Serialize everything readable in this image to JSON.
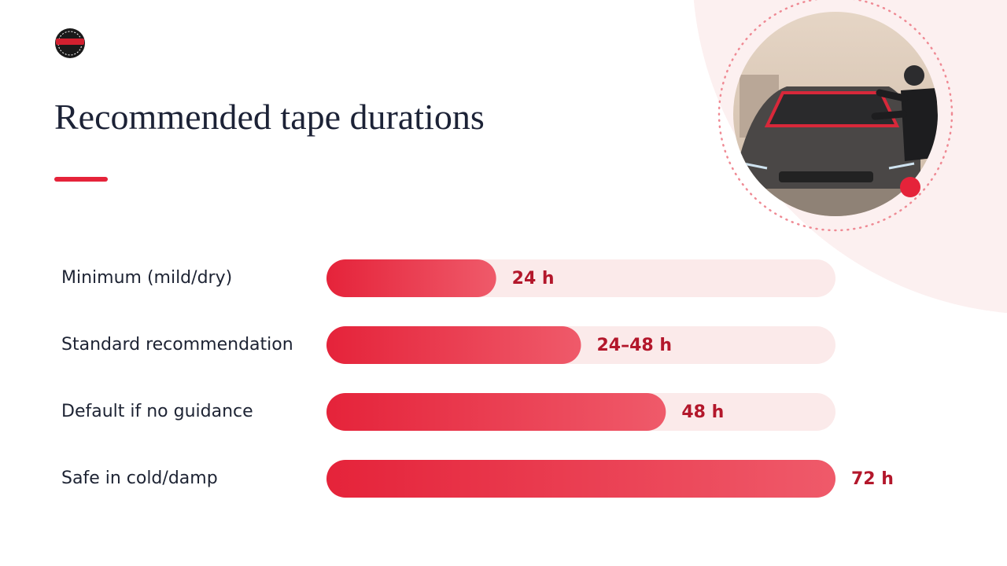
{
  "chart_data": {
    "type": "bar",
    "orientation": "horizontal",
    "title": "Recommended tape durations",
    "categories": [
      "Minimum (mild/dry)",
      "Standard recommendation",
      "Default if no guidance",
      "Safe in cold/damp"
    ],
    "values": [
      24,
      36,
      48,
      72
    ],
    "value_labels": [
      "24 h",
      "24–48 h",
      "48 h",
      "72 h"
    ],
    "color": "#e5233a",
    "xlim": [
      0,
      72
    ]
  }
}
